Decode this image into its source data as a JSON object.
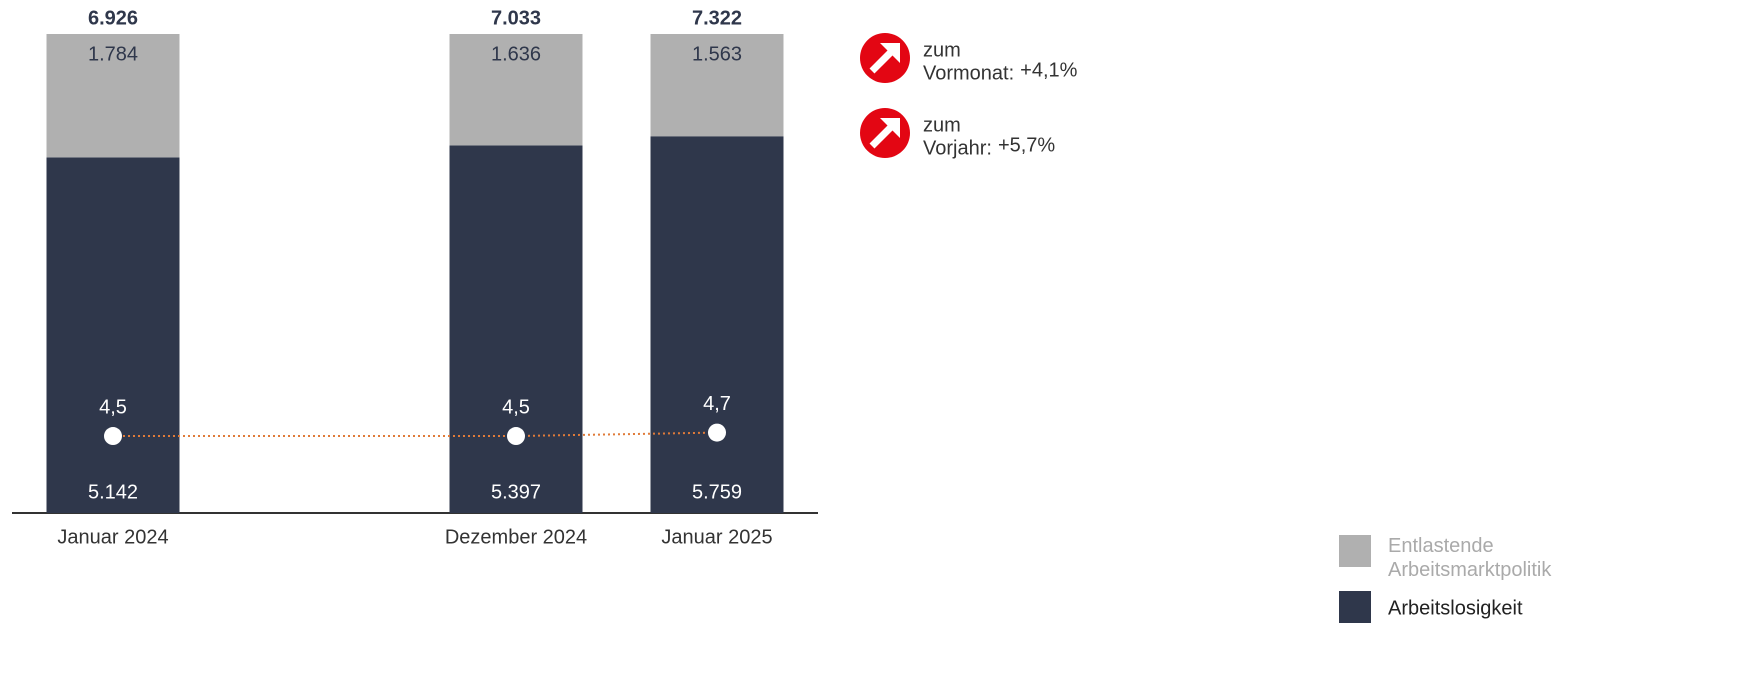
{
  "chart_data": {
    "type": "bar",
    "stacked": "percent",
    "categories": [
      "Januar 2024",
      "Dezember 2024",
      "Januar 2025"
    ],
    "series": [
      {
        "name": "Arbeitslosigkeit",
        "color": "#2f374b",
        "values": [
          5142,
          5397,
          5759
        ],
        "value_labels": [
          "5.142",
          "5.397",
          "5.759"
        ]
      },
      {
        "name": "Entlastende Arbeitsmarktpolitik",
        "color": "#b0b0b0",
        "values": [
          1784,
          1636,
          1563
        ],
        "value_labels": [
          "1.784",
          "1.636",
          "1.563"
        ]
      }
    ],
    "totals": {
      "values": [
        6926,
        7033,
        7322
      ],
      "value_labels": [
        "6.926",
        "7.033",
        "7.322"
      ]
    },
    "line": {
      "type": "line",
      "axis": "y2",
      "color": "#e07b39",
      "values": [
        4.5,
        4.5,
        4.7
      ],
      "value_labels": [
        "4,5",
        "4,5",
        "4,7"
      ]
    },
    "y2lim": [
      0,
      28
    ],
    "annotations": [
      {
        "lines": [
          "zum",
          "Vormonat:"
        ],
        "change": "+4,1%"
      },
      {
        "lines": [
          "zum",
          "Vorjahr:"
        ],
        "change": "+5,7%"
      }
    ],
    "legend": "bottom-right"
  }
}
